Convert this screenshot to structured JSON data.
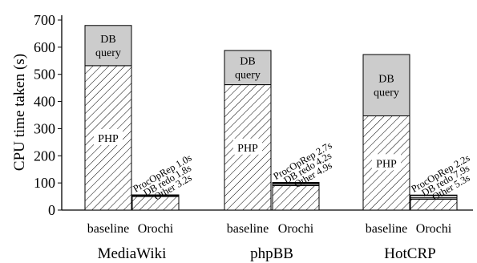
{
  "chart_data": {
    "type": "bar",
    "subtype": "stacked-grouped",
    "ylabel": "CPU time taken (s)",
    "ylim": [
      0,
      700
    ],
    "yticks": [
      0,
      100,
      200,
      300,
      400,
      500,
      600,
      700
    ],
    "grid": false,
    "legend": "none",
    "colors": {
      "php_fill": "#ffffff",
      "hatch": "#000000",
      "db_query": "#cccccc",
      "other": "#cccccc",
      "db_redo": "#ffffff",
      "procoprep": "#cccccc"
    },
    "groups": [
      {
        "name": "MediaWiki",
        "bars": [
          {
            "label": "baseline",
            "segments": [
              {
                "name": "PHP",
                "value": 532,
                "style": "hatch",
                "label": "PHP"
              },
              {
                "name": "DB query",
                "value": 148,
                "style": "gray",
                "label": "DB query"
              }
            ]
          },
          {
            "label": "Orochi",
            "segments": [
              {
                "name": "PHP",
                "value": 50,
                "style": "hatch"
              },
              {
                "name": "Other",
                "value": 3.2,
                "style": "gray"
              },
              {
                "name": "DB redo",
                "value": 1.8,
                "style": "white"
              },
              {
                "name": "ProcOpRep",
                "value": 1.0,
                "style": "gray"
              }
            ],
            "annotations": [
              "ProcOpRep 1.0s",
              "DB redo 1.8s",
              "Other 3.2s"
            ]
          }
        ]
      },
      {
        "name": "phpBB",
        "bars": [
          {
            "label": "baseline",
            "segments": [
              {
                "name": "PHP",
                "value": 462,
                "style": "hatch",
                "label": "PHP"
              },
              {
                "name": "DB query",
                "value": 126,
                "style": "gray",
                "label": "DB query"
              }
            ]
          },
          {
            "label": "Orochi",
            "segments": [
              {
                "name": "PHP",
                "value": 90,
                "style": "hatch"
              },
              {
                "name": "Other",
                "value": 4.9,
                "style": "gray"
              },
              {
                "name": "DB redo",
                "value": 4.2,
                "style": "white"
              },
              {
                "name": "ProcOpRep",
                "value": 2.7,
                "style": "gray"
              }
            ],
            "annotations": [
              "ProcOpRep 2.7s",
              "DB redo 4.2s",
              "Other 4.9s"
            ]
          }
        ]
      },
      {
        "name": "HotCRP",
        "bars": [
          {
            "label": "baseline",
            "segments": [
              {
                "name": "PHP",
                "value": 347,
                "style": "hatch",
                "label": "PHP"
              },
              {
                "name": "DB query",
                "value": 226,
                "style": "gray",
                "label": "DB query"
              }
            ]
          },
          {
            "label": "Orochi",
            "segments": [
              {
                "name": "PHP",
                "value": 40,
                "style": "hatch"
              },
              {
                "name": "Other",
                "value": 5.3,
                "style": "gray"
              },
              {
                "name": "DB redo",
                "value": 7.9,
                "style": "white"
              },
              {
                "name": "ProcOpRep",
                "value": 2.2,
                "style": "gray"
              }
            ],
            "annotations": [
              "ProcOpRep 2.2s",
              "DB redo 7.9s",
              "Other 5.3s"
            ]
          }
        ]
      }
    ]
  }
}
